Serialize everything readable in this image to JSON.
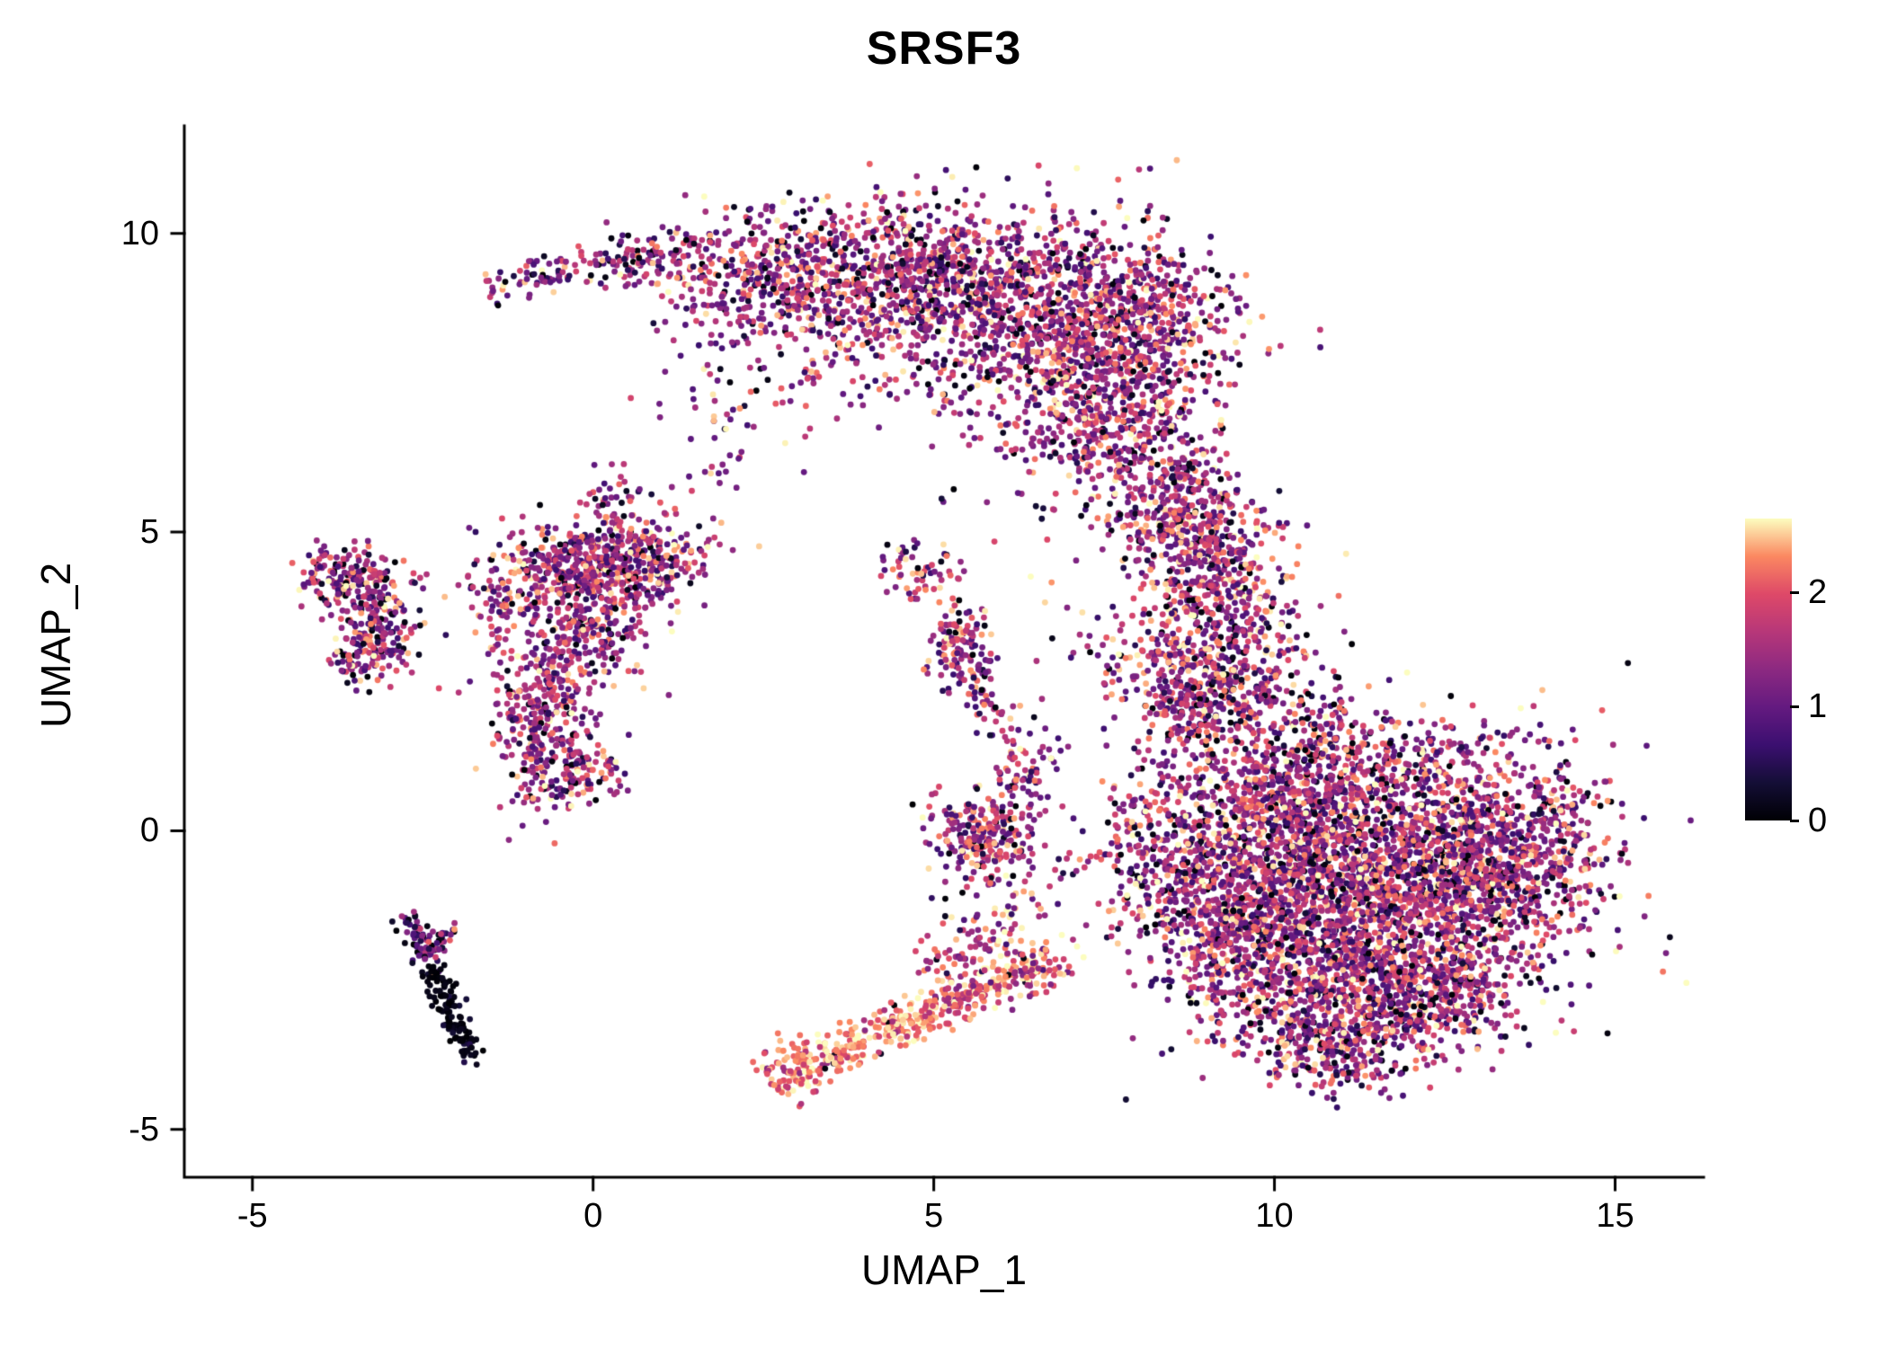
{
  "title": "SRSF3",
  "chart_data": {
    "type": "scatter",
    "title": "SRSF3",
    "xlabel": "UMAP_1",
    "ylabel": "UMAP_2",
    "x_ticks": [
      -5,
      0,
      5,
      10,
      15
    ],
    "y_ticks": [
      -5,
      0,
      5,
      10
    ],
    "x_domain": [
      -6.0,
      16.3
    ],
    "y_domain": [
      -5.8,
      11.8
    ],
    "grid": false,
    "legend_position": "right",
    "point_radius_px": 3.4,
    "seed": 20240613,
    "colormap": {
      "name": "magma",
      "vmin": 0,
      "vmax": 2.65,
      "stops": [
        [
          0,
          "#000004"
        ],
        [
          0.125,
          "#140e36"
        ],
        [
          0.25,
          "#3b0f70"
        ],
        [
          0.375,
          "#641a80"
        ],
        [
          0.5,
          "#8c2981"
        ],
        [
          0.625,
          "#b73779"
        ],
        [
          0.75,
          "#de4968"
        ],
        [
          0.875,
          "#fb8861"
        ],
        [
          1,
          "#fcfdbf"
        ]
      ]
    },
    "legend_ticks": [
      0,
      1,
      2
    ],
    "default_expr": {
      "m": 1.4,
      "s": 0.6,
      "pl": 0.06,
      "ph": 0.07
    },
    "clusters": [
      {
        "k": "l",
        "x1": -1.4,
        "y1": 9.15,
        "x2": 1.2,
        "y2": 9.65,
        "j": 0.16,
        "n": 140,
        "e": {
          "m": 1.3,
          "s": 0.55,
          "pl": 0.06,
          "ph": 0.04
        }
      },
      {
        "k": "b",
        "x": 2.5,
        "y": 9.35,
        "sx": 0.9,
        "sy": 0.5,
        "n": 380
      },
      {
        "k": "b",
        "x": 4.4,
        "y": 9.3,
        "sx": 1.1,
        "sy": 0.65,
        "n": 650
      },
      {
        "k": "b",
        "x": 6.2,
        "y": 8.9,
        "sx": 1.1,
        "sy": 0.75,
        "n": 700
      },
      {
        "k": "b",
        "x": 7.9,
        "y": 8.6,
        "sx": 0.85,
        "sy": 0.65,
        "n": 480
      },
      {
        "k": "b",
        "x": 7.2,
        "y": 7.3,
        "sx": 0.9,
        "sy": 0.85,
        "n": 520
      },
      {
        "k": "b",
        "x": 8.0,
        "y": 6.3,
        "sx": 0.6,
        "sy": 0.75,
        "n": 260
      },
      {
        "k": "b",
        "x": 8.6,
        "y": 5.4,
        "sx": 0.4,
        "sy": 0.55,
        "n": 130
      },
      {
        "k": "b",
        "x": 3.4,
        "y": 7.9,
        "sx": 1.0,
        "sy": 0.65,
        "n": 110
      },
      {
        "k": "b",
        "x": 2.2,
        "y": 7.1,
        "sx": 0.5,
        "sy": 0.5,
        "n": 40
      },
      {
        "k": "b",
        "x": 1.7,
        "y": 6.0,
        "sx": 0.25,
        "sy": 0.2,
        "n": 8
      },
      {
        "k": "b",
        "x": 5.4,
        "y": 5.4,
        "sx": 0.6,
        "sy": 0.6,
        "n": 6
      },
      {
        "k": "b",
        "x": -3.6,
        "y": 4.25,
        "sx": 0.28,
        "sy": 0.28,
        "n": 110
      },
      {
        "k": "b",
        "x": -3.15,
        "y": 3.7,
        "sx": 0.35,
        "sy": 0.45,
        "n": 150
      },
      {
        "k": "b",
        "x": -3.3,
        "y": 2.95,
        "sx": 0.3,
        "sy": 0.3,
        "n": 100
      },
      {
        "k": "b",
        "x": -4.0,
        "y": 4.3,
        "sx": 0.15,
        "sy": 0.2,
        "n": 30
      },
      {
        "k": "b",
        "x": -0.3,
        "y": 4.5,
        "sx": 0.55,
        "sy": 0.4,
        "n": 260
      },
      {
        "k": "b",
        "x": 0.5,
        "y": 4.4,
        "sx": 0.5,
        "sy": 0.4,
        "n": 200
      },
      {
        "k": "b",
        "x": -0.2,
        "y": 3.4,
        "sx": 0.55,
        "sy": 0.5,
        "n": 260
      },
      {
        "k": "b",
        "x": -0.7,
        "y": 2.3,
        "sx": 0.4,
        "sy": 0.5,
        "n": 180
      },
      {
        "k": "b",
        "x": -0.8,
        "y": 1.2,
        "sx": 0.35,
        "sy": 0.5,
        "n": 150
      },
      {
        "k": "b",
        "x": -0.1,
        "y": 1.0,
        "sx": 0.3,
        "sy": 0.3,
        "n": 80
      },
      {
        "k": "b",
        "x": 1.0,
        "y": 4.6,
        "sx": 0.4,
        "sy": 0.3,
        "n": 90
      },
      {
        "k": "b",
        "x": 0.3,
        "y": 5.5,
        "sx": 0.25,
        "sy": 0.3,
        "n": 45
      },
      {
        "k": "b",
        "x": -1.3,
        "y": 3.9,
        "sx": 0.3,
        "sy": 0.4,
        "n": 70
      },
      {
        "k": "l",
        "x1": -2.75,
        "y1": -1.45,
        "x2": -2.35,
        "y2": -2.3,
        "j": 0.1,
        "n": 60,
        "e": {
          "m": 0.9,
          "s": 0.6,
          "pl": 0.2,
          "ph": 0.03
        }
      },
      {
        "k": "l",
        "x1": -2.35,
        "y1": -2.3,
        "x2": -1.78,
        "y2": -3.78,
        "j": 0.1,
        "n": 120,
        "e": {
          "m": 0.15,
          "s": 0.18,
          "pl": 0.55,
          "ph": 0
        }
      },
      {
        "k": "l",
        "x1": -2.5,
        "y1": -2.0,
        "x2": -2.05,
        "y2": -1.65,
        "j": 0.08,
        "n": 30,
        "e": {
          "m": 1.0,
          "s": 0.6,
          "pl": 0.15,
          "ph": 0.05
        }
      },
      {
        "k": "b",
        "x": 4.8,
        "y": 4.4,
        "sx": 0.3,
        "sy": 0.27,
        "n": 60
      },
      {
        "k": "b",
        "x": 5.4,
        "y": 3.2,
        "sx": 0.22,
        "sy": 0.38,
        "n": 120
      },
      {
        "k": "l",
        "x1": 5.55,
        "y1": 2.7,
        "x2": 5.8,
        "y2": 1.95,
        "j": 0.1,
        "n": 30
      },
      {
        "k": "b",
        "x": 5.7,
        "y": -0.1,
        "sx": 0.38,
        "sy": 0.38,
        "n": 230,
        "e": {
          "m": 1.5,
          "s": 0.6,
          "pl": 0.05,
          "ph": 0.08
        }
      },
      {
        "k": "b",
        "x": 6.4,
        "y": 1.0,
        "sx": 0.25,
        "sy": 0.4,
        "n": 70
      },
      {
        "k": "b",
        "x": 6.0,
        "y": 1.9,
        "sx": 0.2,
        "sy": 0.25,
        "n": 15
      },
      {
        "k": "b",
        "x": 6.7,
        "y": 3.2,
        "sx": 0.5,
        "sy": 0.7,
        "n": 12
      },
      {
        "k": "b",
        "x": 3.0,
        "y": -4.0,
        "sx": 0.27,
        "sy": 0.27,
        "n": 100,
        "e": {
          "m": 2.1,
          "s": 0.4,
          "pl": 0.03,
          "ph": 0.25
        }
      },
      {
        "k": "l",
        "x1": 3.2,
        "y1": -3.85,
        "x2": 5.0,
        "y2": -3.0,
        "j": 0.18,
        "n": 210,
        "e": {
          "m": 2.25,
          "s": 0.35,
          "pl": 0.02,
          "ph": 0.3
        }
      },
      {
        "k": "l",
        "x1": 5.0,
        "y1": -3.0,
        "x2": 6.9,
        "y2": -2.1,
        "j": 0.2,
        "n": 190,
        "e": {
          "m": 1.9,
          "s": 0.5,
          "pl": 0.03,
          "ph": 0.2
        }
      },
      {
        "k": "b",
        "x": 5.7,
        "y": -2.3,
        "sx": 0.55,
        "sy": 0.3,
        "n": 70,
        "e": {
          "m": 1.8,
          "s": 0.55,
          "pl": 0.04,
          "ph": 0.15
        }
      },
      {
        "k": "b",
        "x": 5.9,
        "y": -1.5,
        "sx": 0.45,
        "sy": 0.4,
        "n": 60,
        "e": {
          "m": 1.6,
          "s": 0.6,
          "pl": 0.05,
          "ph": 0.1
        }
      },
      {
        "k": "b",
        "x": 7.0,
        "y": -0.8,
        "sx": 0.5,
        "sy": 0.5,
        "n": 25
      },
      {
        "k": "b",
        "x": 9.0,
        "y": 4.8,
        "sx": 0.5,
        "sy": 0.55,
        "n": 300
      },
      {
        "k": "b",
        "x": 9.3,
        "y": 3.4,
        "sx": 0.6,
        "sy": 0.7,
        "n": 400
      },
      {
        "k": "b",
        "x": 9.0,
        "y": 2.1,
        "sx": 0.5,
        "sy": 0.55,
        "n": 240
      },
      {
        "k": "b",
        "x": 8.3,
        "y": 2.7,
        "sx": 0.3,
        "sy": 0.6,
        "n": 80
      },
      {
        "k": "b",
        "x": 7.8,
        "y": 2.9,
        "sx": 0.35,
        "sy": 0.55,
        "n": 25
      },
      {
        "k": "b",
        "x": 10.3,
        "y": 0.6,
        "sx": 0.8,
        "sy": 0.7,
        "n": 650
      },
      {
        "k": "b",
        "x": 11.5,
        "y": -0.9,
        "sx": 1.3,
        "sy": 1.0,
        "n": 1800
      },
      {
        "k": "b",
        "x": 13.2,
        "y": -0.4,
        "sx": 0.8,
        "sy": 0.85,
        "n": 750
      },
      {
        "k": "b",
        "x": 10.0,
        "y": -1.8,
        "sx": 0.8,
        "sy": 0.8,
        "n": 550
      },
      {
        "k": "b",
        "x": 9.0,
        "y": -1.0,
        "sx": 0.55,
        "sy": 0.9,
        "n": 350
      },
      {
        "k": "b",
        "x": 8.2,
        "y": -0.2,
        "sx": 0.5,
        "sy": 0.8,
        "n": 200
      },
      {
        "k": "b",
        "x": 11.0,
        "y": -3.0,
        "sx": 0.9,
        "sy": 0.55,
        "n": 450
      },
      {
        "k": "b",
        "x": 12.3,
        "y": -2.6,
        "sx": 0.7,
        "sy": 0.55,
        "n": 380
      },
      {
        "k": "b",
        "x": 10.8,
        "y": -3.8,
        "sx": 0.5,
        "sy": 0.3,
        "n": 130
      },
      {
        "k": "b",
        "x": 14.2,
        "y": 0.3,
        "sx": 0.25,
        "sy": 0.35,
        "n": 50
      },
      {
        "k": "b",
        "x": 12.0,
        "y": 1.1,
        "sx": 0.8,
        "sy": 0.4,
        "n": 130
      },
      {
        "k": "b",
        "x": 10.5,
        "y": 1.9,
        "sx": 0.5,
        "sy": 0.4,
        "n": 70
      }
    ]
  }
}
